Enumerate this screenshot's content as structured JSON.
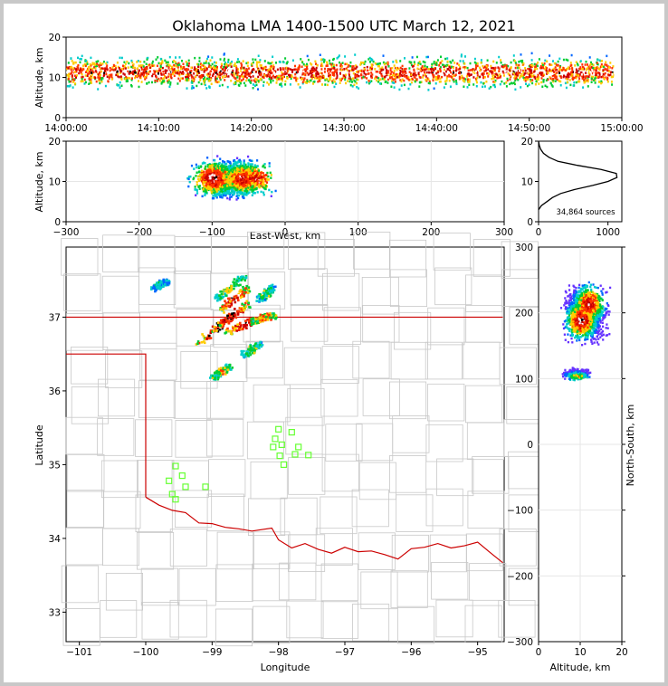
{
  "chart_data": {
    "title": "Oklahoma LMA 1400-1500 UTC March 12, 2021",
    "colors": {
      "border": "#cc0000",
      "county": "#c8c8c8",
      "station": "#66ff33",
      "axis": "#000000",
      "grid": "#e6e6e6"
    },
    "panels": [
      {
        "id": "time-height",
        "type": "heatmap",
        "ylabel": "Altitude, km",
        "xlabel": "",
        "ylim": [
          0,
          20
        ],
        "yticks": [
          "0",
          "10",
          "20"
        ],
        "xlim_minutes": [
          0,
          60
        ],
        "xticks": [
          "14:00:00",
          "14:10:00",
          "14:20:00",
          "14:30:00",
          "14:40:00",
          "14:50:00",
          "15:00:00"
        ],
        "activity": {
          "start_minute": 0,
          "end_minute": 59,
          "core_altitude_km": [
            7,
            15
          ]
        }
      },
      {
        "id": "east-west-height",
        "type": "heatmap",
        "ylabel": "Altitude, km",
        "xlabel": "East-West, km",
        "xlim": [
          -300,
          300
        ],
        "ylim": [
          0,
          20
        ],
        "xticks": [
          "−300",
          "−200",
          "−100",
          "0",
          "100",
          "200",
          "300"
        ],
        "yticks": [
          "0",
          "10",
          "20"
        ],
        "cells": [
          {
            "x": -100,
            "z": 11,
            "density": 1.0
          },
          {
            "x": -60,
            "z": 11,
            "density": 0.9
          },
          {
            "x": -40,
            "z": 11,
            "density": 0.85
          }
        ]
      },
      {
        "id": "altitude-histogram",
        "type": "line",
        "xlim": [
          0,
          1200
        ],
        "ylim": [
          0,
          20
        ],
        "xticks": [
          "0",
          "1000"
        ],
        "yticks": [
          "0",
          "10",
          "20"
        ],
        "annotation": "34,864 sources",
        "points": [
          [
            0,
            3
          ],
          [
            40,
            4
          ],
          [
            120,
            5
          ],
          [
            200,
            6
          ],
          [
            320,
            7
          ],
          [
            520,
            8
          ],
          [
            780,
            9
          ],
          [
            1000,
            10
          ],
          [
            1130,
            11
          ],
          [
            1120,
            12
          ],
          [
            900,
            13
          ],
          [
            560,
            14
          ],
          [
            280,
            15
          ],
          [
            150,
            16
          ],
          [
            70,
            17
          ],
          [
            30,
            18
          ],
          [
            10,
            19
          ],
          [
            0,
            20
          ]
        ]
      },
      {
        "id": "plan-view",
        "type": "scatter",
        "xlabel": "Longitude",
        "ylabel": "Latitude",
        "xlim": [
          -101.2,
          -94.6
        ],
        "ylim": [
          32.6,
          37.95
        ],
        "xticks": [
          "−101",
          "−100",
          "−99",
          "−98",
          "−97",
          "−96",
          "−95"
        ],
        "yticks": [
          "33",
          "34",
          "35",
          "36",
          "37"
        ],
        "stations": [
          [
            -99.55,
            34.98
          ],
          [
            -99.45,
            34.85
          ],
          [
            -99.65,
            34.78
          ],
          [
            -99.4,
            34.7
          ],
          [
            -99.6,
            34.6
          ],
          [
            -99.55,
            34.53
          ],
          [
            -99.1,
            34.7
          ],
          [
            -98.0,
            35.48
          ],
          [
            -97.8,
            35.44
          ],
          [
            -98.05,
            35.35
          ],
          [
            -97.95,
            35.27
          ],
          [
            -98.08,
            35.24
          ],
          [
            -97.7,
            35.24
          ],
          [
            -97.98,
            35.12
          ],
          [
            -97.75,
            35.14
          ],
          [
            -97.55,
            35.13
          ],
          [
            -97.92,
            35.0
          ]
        ],
        "storm_bands": [
          {
            "from": [
              -99.2,
              36.68
            ],
            "to": [
              -98.7,
              37.05
            ],
            "density": 1.0
          },
          {
            "from": [
              -99.0,
              36.85
            ],
            "to": [
              -98.45,
              37.2
            ],
            "density": 0.95
          },
          {
            "from": [
              -98.9,
              37.1
            ],
            "to": [
              -98.5,
              37.4
            ],
            "density": 0.9
          },
          {
            "from": [
              -98.8,
              36.8
            ],
            "to": [
              -98.2,
              37.05
            ],
            "density": 0.9
          },
          {
            "from": [
              -98.4,
              36.95
            ],
            "to": [
              -98.05,
              37.05
            ],
            "density": 0.7
          },
          {
            "from": [
              -99.0,
              36.2
            ],
            "to": [
              -98.75,
              36.35
            ],
            "density": 0.6
          },
          {
            "from": [
              -98.55,
              36.5
            ],
            "to": [
              -98.3,
              36.65
            ],
            "density": 0.5
          },
          {
            "from": [
              -98.95,
              37.25
            ],
            "to": [
              -98.55,
              37.55
            ],
            "density": 0.55
          },
          {
            "from": [
              -98.3,
              37.25
            ],
            "to": [
              -98.1,
              37.42
            ],
            "density": 0.45
          },
          {
            "from": [
              -99.9,
              37.4
            ],
            "to": [
              -99.7,
              37.5
            ],
            "density": 0.35
          }
        ]
      },
      {
        "id": "altitude-north-south",
        "type": "heatmap",
        "xlabel": "Altitude, km",
        "ylabel": "North-South, km",
        "xlim": [
          0,
          20
        ],
        "ylim": [
          -300,
          300
        ],
        "xticks": [
          "0",
          "10",
          "20"
        ],
        "yticks": [
          "−300",
          "−200",
          "−100",
          "0",
          "100",
          "200",
          "300"
        ],
        "cells": [
          {
            "alt": 10,
            "ns": 190,
            "density": 1.0
          },
          {
            "alt": 12,
            "ns": 215,
            "density": 0.95
          },
          {
            "alt": 9,
            "ns": 105,
            "density": 0.6
          }
        ]
      }
    ]
  }
}
